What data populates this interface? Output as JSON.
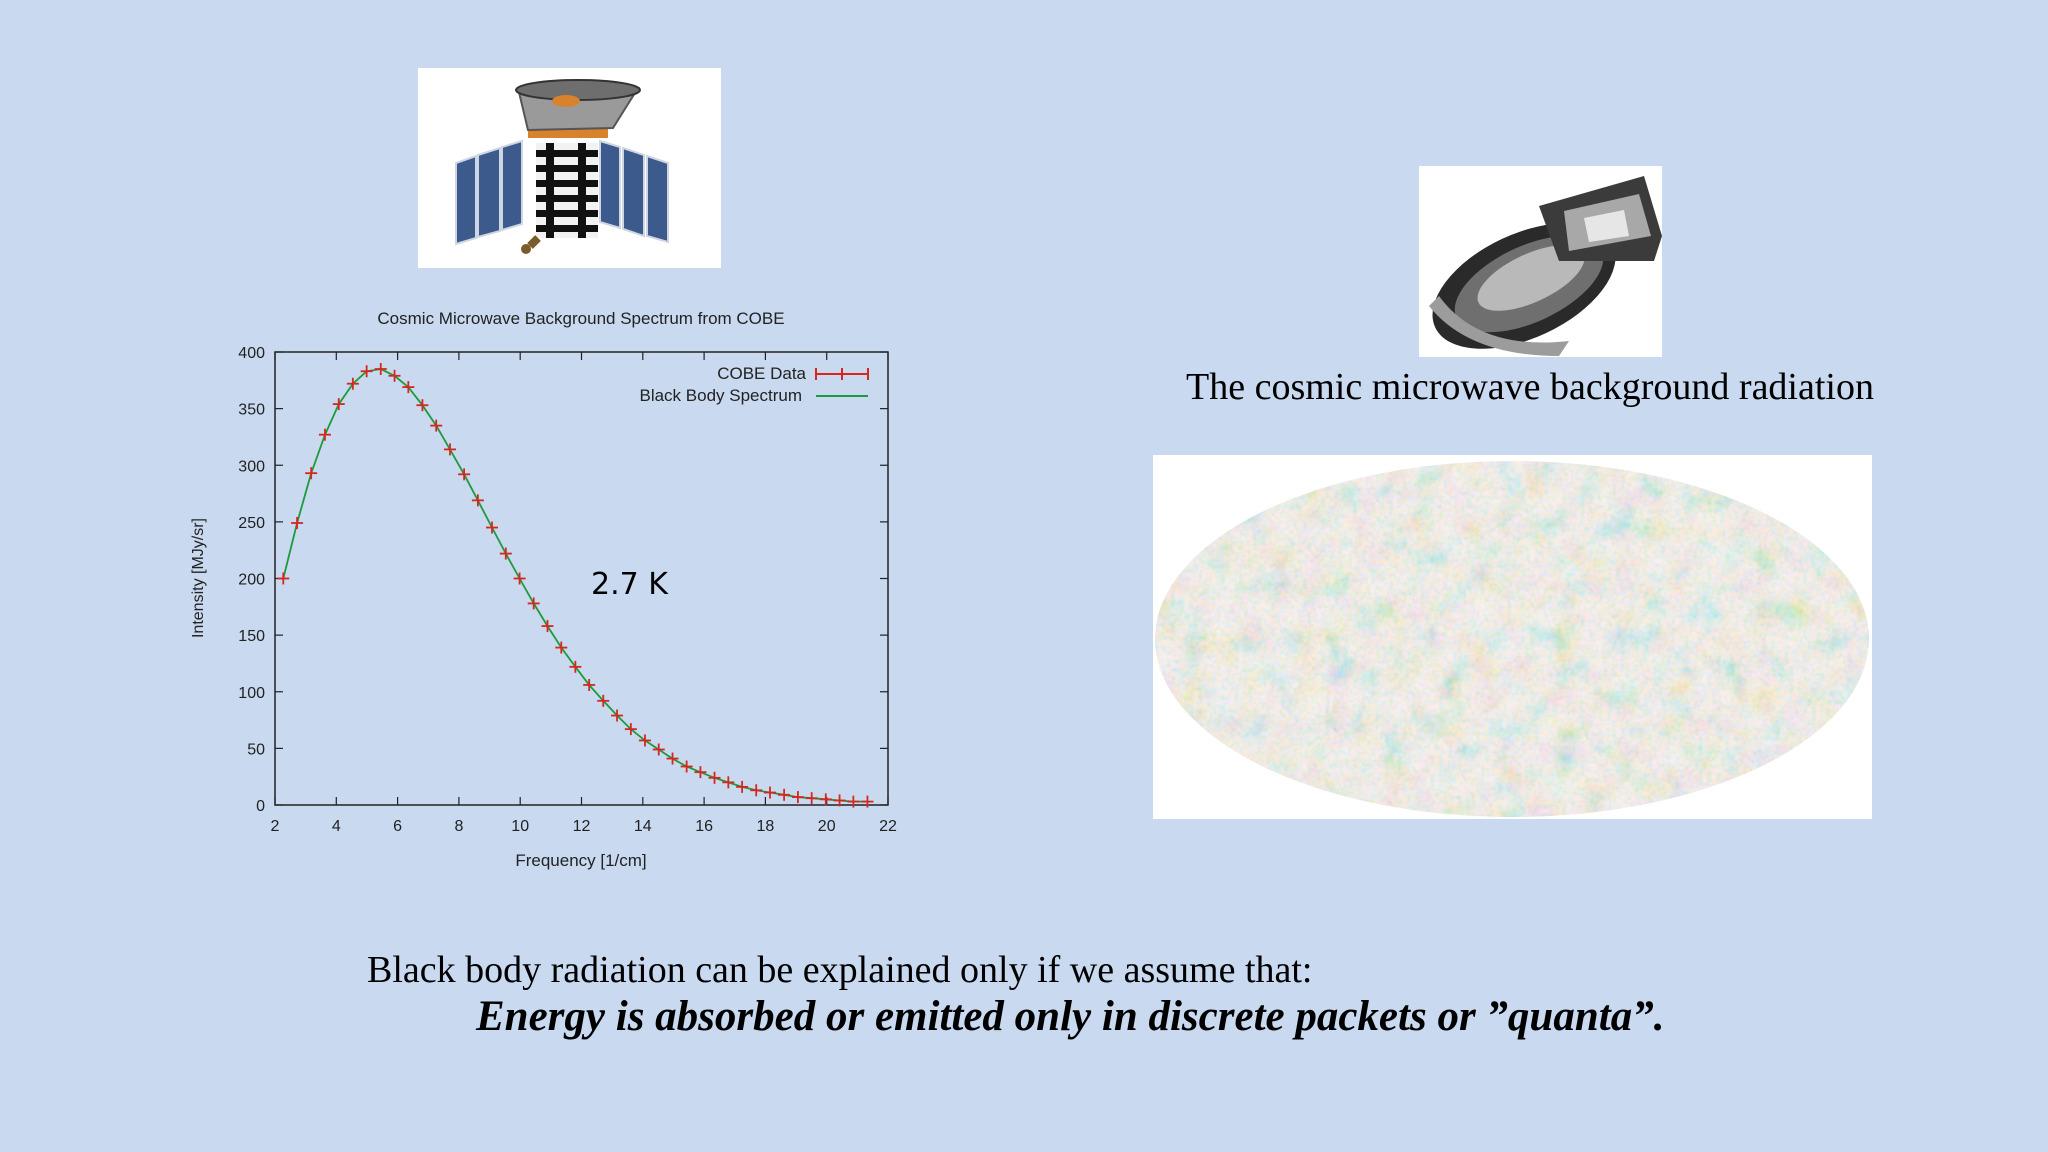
{
  "caption_right": "The cosmic microwave background radiation",
  "body": {
    "line1": "Black body radiation can be explained only if we assume that:",
    "line2": "Energy is absorbed or emitted only in discrete packets or ”quanta”."
  },
  "images": {
    "cobe": "cobe-satellite-image",
    "planck": "planck-satellite-image",
    "skymap": "cmb-sky-map-image"
  },
  "colors": {
    "background": "#c8d9f0",
    "data_marker": "#d7261e",
    "fit_line": "#1e9a3c"
  },
  "chart_data": {
    "type": "line",
    "title": "Cosmic Microwave Background Spectrum from COBE",
    "xlabel": "Frequency [1/cm]",
    "ylabel": "Intensity [MJy/sr]",
    "xlim": [
      2,
      22
    ],
    "ylim": [
      0,
      400
    ],
    "xticks": [
      2,
      4,
      6,
      8,
      10,
      12,
      14,
      16,
      18,
      20,
      22
    ],
    "yticks": [
      0,
      50,
      100,
      150,
      200,
      250,
      300,
      350,
      400
    ],
    "annotation": "2.7 K",
    "legend_position": "top-right",
    "series": [
      {
        "name": "COBE Data",
        "style": "points-with-errorbars",
        "x": [
          2.27,
          2.72,
          3.18,
          3.63,
          4.08,
          4.54,
          4.99,
          5.45,
          5.9,
          6.35,
          6.81,
          7.26,
          7.71,
          8.17,
          8.62,
          9.08,
          9.53,
          9.98,
          10.44,
          10.89,
          11.34,
          11.8,
          12.25,
          12.71,
          13.16,
          13.61,
          14.07,
          14.52,
          14.97,
          15.43,
          15.88,
          16.34,
          16.79,
          17.24,
          17.7,
          18.15,
          18.61,
          19.06,
          19.51,
          19.97,
          20.42,
          20.87,
          21.33
        ],
        "y": [
          200,
          249,
          293,
          327,
          354,
          372,
          383,
          385,
          379,
          369,
          353,
          335,
          314,
          292,
          269,
          245,
          222,
          200,
          178,
          158,
          139,
          122,
          106,
          92,
          79,
          67,
          57,
          49,
          41,
          34,
          29,
          24,
          20,
          16,
          13,
          11,
          9,
          7,
          6,
          5,
          4,
          3,
          3
        ]
      },
      {
        "name": "Black Body Spectrum",
        "style": "line",
        "x": [
          2.27,
          2.72,
          3.18,
          3.63,
          4.08,
          4.54,
          4.99,
          5.45,
          5.9,
          6.35,
          6.81,
          7.26,
          7.71,
          8.17,
          8.62,
          9.08,
          9.53,
          9.98,
          10.44,
          10.89,
          11.34,
          11.8,
          12.25,
          12.71,
          13.16,
          13.61,
          14.07,
          14.52,
          14.97,
          15.43,
          15.88,
          16.34,
          16.79,
          17.24,
          17.7,
          18.15,
          18.61,
          19.06,
          19.51,
          19.97,
          20.42,
          20.87,
          21.33
        ],
        "y": [
          200,
          249,
          293,
          327,
          354,
          372,
          383,
          385,
          379,
          369,
          353,
          335,
          314,
          292,
          269,
          245,
          222,
          200,
          178,
          158,
          139,
          122,
          106,
          92,
          79,
          67,
          57,
          49,
          41,
          34,
          29,
          24,
          20,
          16,
          13,
          11,
          9,
          7,
          6,
          5,
          4,
          3,
          3
        ]
      }
    ]
  }
}
